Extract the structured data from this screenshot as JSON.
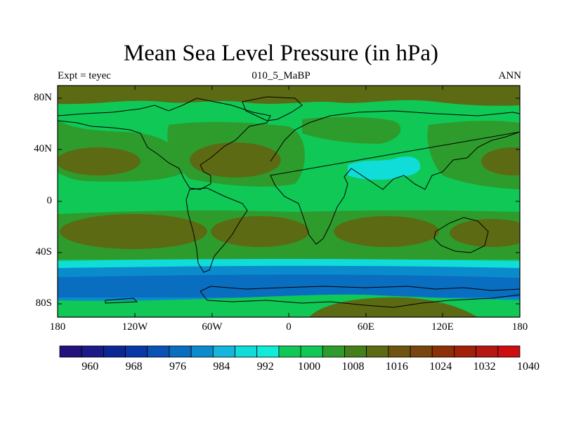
{
  "title": "Mean Sea Level Pressure (in hPa)",
  "subtitle_left": "Expt = teyec",
  "subtitle_center": "010_5_MaBP",
  "subtitle_right": "ANN",
  "lat_labels": [
    "80N",
    "40N",
    "0",
    "40S",
    "80S"
  ],
  "lon_labels": [
    "180",
    "120W",
    "60W",
    "0",
    "60E",
    "120E",
    "180"
  ],
  "colorbar": {
    "labels": [
      "960",
      "968",
      "976",
      "984",
      "992",
      "1000",
      "1008",
      "1016",
      "1024",
      "1032",
      "1040"
    ],
    "colors": [
      "#22127a",
      "#1a1b86",
      "#0c2694",
      "#0838a8",
      "#0a52b4",
      "#0a6ec0",
      "#0a8ccc",
      "#16b6dc",
      "#10dcd8",
      "#10ecd8",
      "#10c856",
      "#10c856",
      "#2e9c2c",
      "#457f1c",
      "#5c6a14",
      "#6e5410",
      "#7a4410",
      "#8c3008",
      "#a0200a",
      "#b41810",
      "#cc0e10"
    ]
  },
  "map_colors": {
    "deep_blue": "#0a6ec0",
    "mid_blue": "#0a8ccc",
    "cyan": "#10dcd8",
    "light_green": "#10c856",
    "mid_green": "#2e9c2c",
    "olive": "#5c6a14",
    "brown": "#6e5410"
  }
}
